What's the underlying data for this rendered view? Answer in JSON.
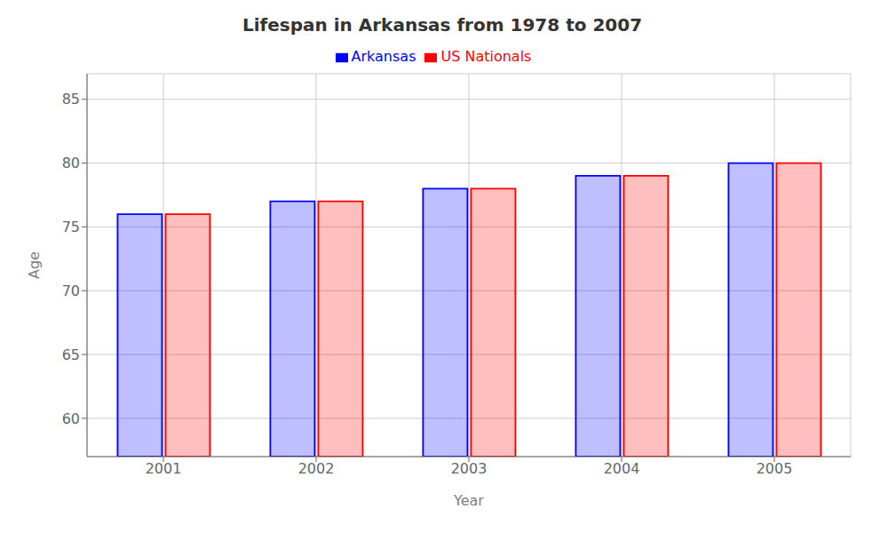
{
  "chart_data": {
    "type": "bar",
    "title": "Lifespan in Arkansas from 1978 to 2007",
    "x_label": "Year",
    "y_label": "Age",
    "categories": [
      "2001",
      "2002",
      "2003",
      "2004",
      "2005"
    ],
    "series": [
      {
        "name": "Arkansas",
        "color": "#0000ff",
        "values": [
          76,
          77,
          78,
          79,
          80
        ]
      },
      {
        "name": "US Nationals",
        "color": "#ff0000",
        "values": [
          76,
          77,
          78,
          79,
          80
        ]
      }
    ],
    "ylim": [
      57,
      87
    ],
    "yticks": [
      60,
      65,
      70,
      75,
      80,
      85
    ],
    "grid": true,
    "legend": "top"
  }
}
